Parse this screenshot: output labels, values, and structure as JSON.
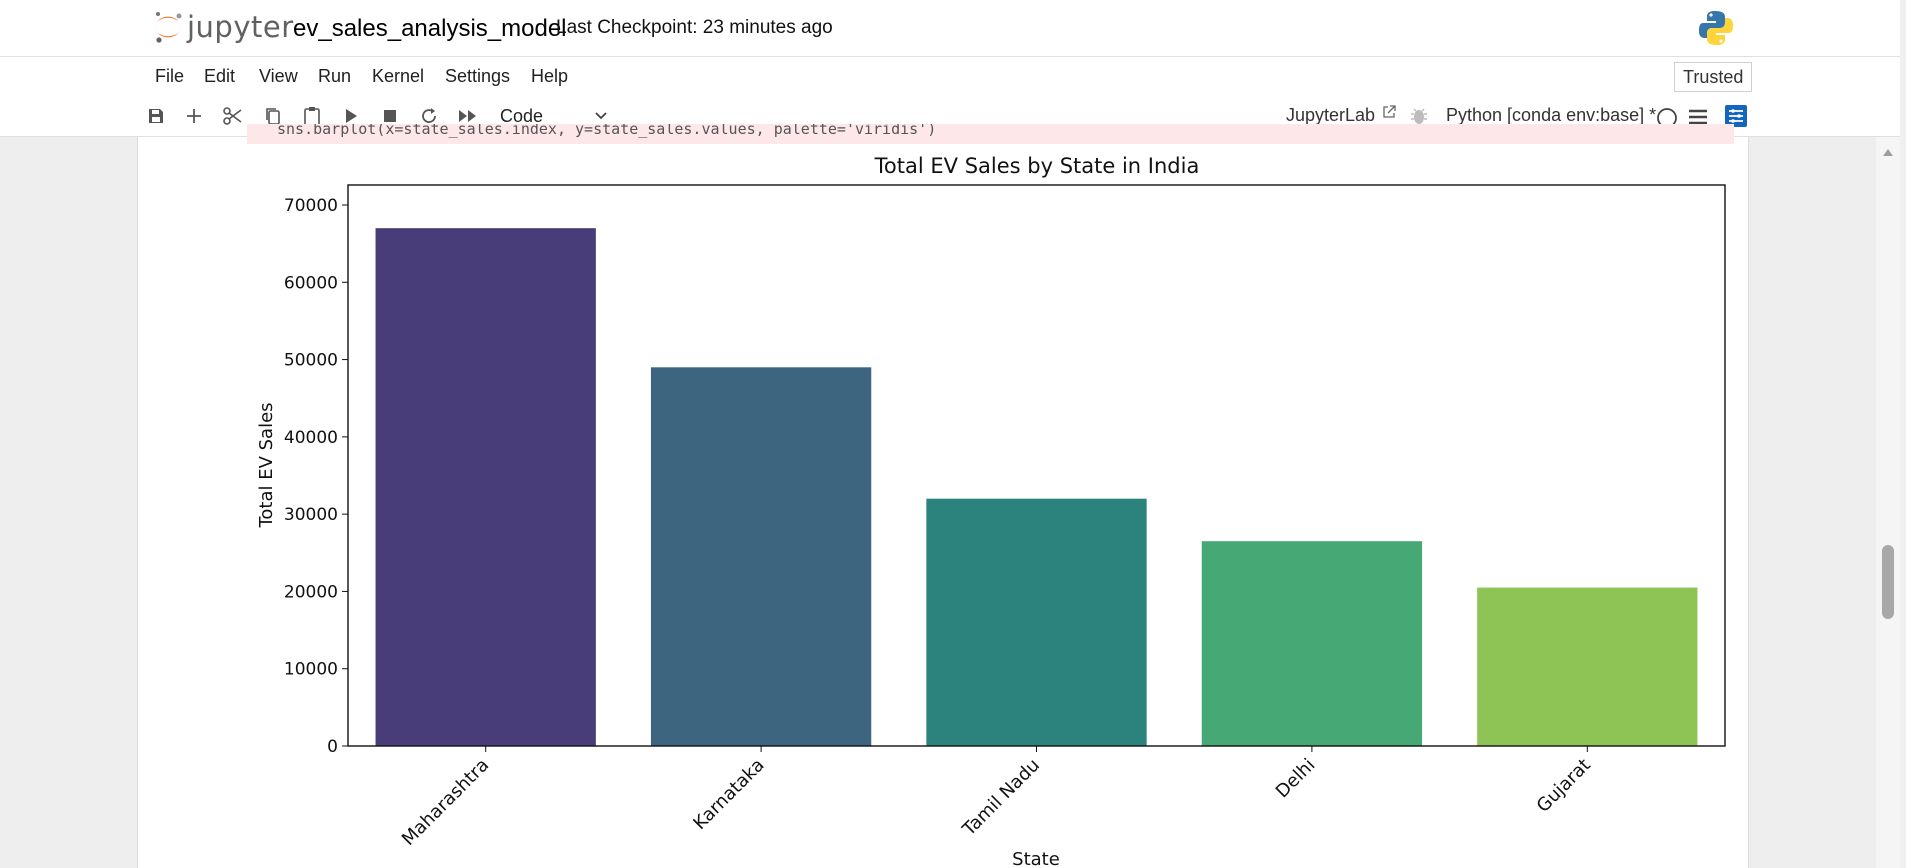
{
  "header": {
    "logo_text": "jupyter",
    "notebook_title": "ev_sales_analysis_model",
    "checkpoint": "Last Checkpoint: 23 minutes ago"
  },
  "menu": [
    "File",
    "Edit",
    "View",
    "Run",
    "Kernel",
    "Settings",
    "Help"
  ],
  "trusted": "Trusted",
  "toolbar": {
    "cell_type": "Code",
    "jupyterlab_label": "JupyterLab",
    "kernel_name": "Python [conda env:base] *"
  },
  "code_snippet": "sns.barplot(x=state_sales.index, y=state_sales.values, palette='viridis')",
  "colors": {
    "accent": "#1565c0",
    "jupyter_orange": "#f37626",
    "bar_colors": [
      "#483d78",
      "#3d6580",
      "#2c827c",
      "#46a874",
      "#8ec456"
    ]
  },
  "chart_data": {
    "type": "bar",
    "title": "Total EV Sales by State in India",
    "xlabel": "State",
    "ylabel": "Total EV Sales",
    "categories": [
      "Maharashtra",
      "Karnataka",
      "Tamil Nadu",
      "Delhi",
      "Gujarat"
    ],
    "values": [
      67000,
      49000,
      32000,
      26500,
      20500
    ],
    "ylim": [
      0,
      70000
    ],
    "yticks": [
      0,
      10000,
      20000,
      30000,
      40000,
      50000,
      60000,
      70000
    ],
    "ytick_labels": [
      "0",
      "10000",
      "20000",
      "30000",
      "40000",
      "50000",
      "60000",
      "70000"
    ],
    "grid": false
  }
}
